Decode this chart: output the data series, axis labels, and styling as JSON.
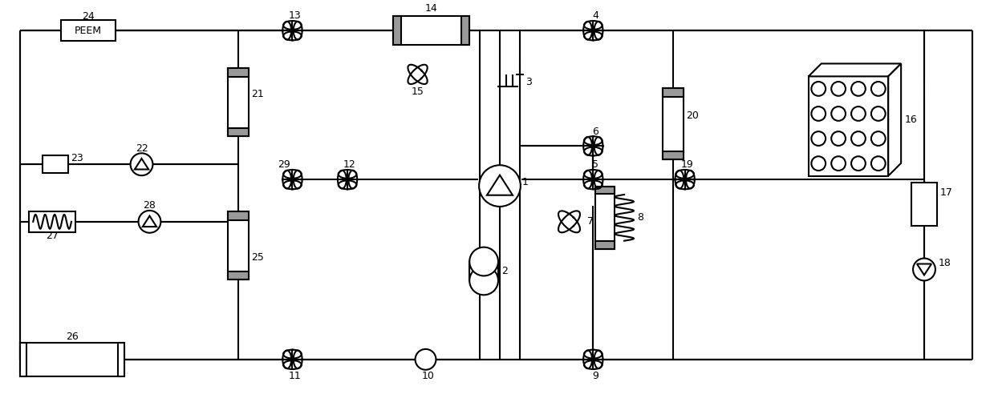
{
  "figsize": [
    12.39,
    4.92
  ],
  "dpi": 100,
  "bg": "white",
  "lc": "black",
  "lw": 1.5
}
